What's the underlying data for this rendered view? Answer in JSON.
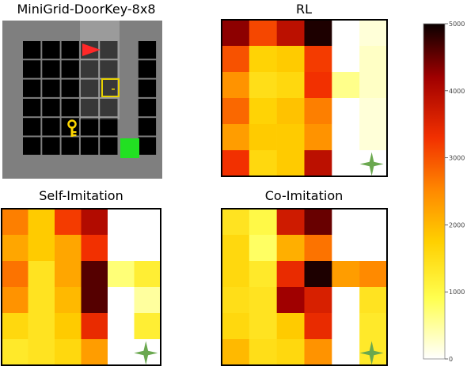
{
  "titles": {
    "env": "MiniGrid-DoorKey-8x8",
    "rl": "RL",
    "self": "Self-Imitation",
    "co": "Co-Imitation"
  },
  "colorbar": {
    "ticks": [
      "0",
      "1000",
      "2000",
      "3000",
      "4000",
      "5000"
    ],
    "min": 0,
    "max": 5000
  },
  "colors": {
    "agent": "#ff2828",
    "key": "#ffd700",
    "goal": "#22e022",
    "star": "#6aa84f",
    "wall": "#7f7f7f",
    "floor": "#000000"
  },
  "chart_data": [
    {
      "type": "heatmap",
      "title": "RL",
      "values": [
        [
          4300,
          3100,
          3900,
          4900,
          0,
          200
        ],
        [
          3000,
          1700,
          1800,
          3200,
          0,
          300
        ],
        [
          2400,
          1500,
          1600,
          3300,
          600,
          300
        ],
        [
          2800,
          1700,
          1900,
          2600,
          0,
          200
        ],
        [
          2300,
          1800,
          1800,
          2400,
          0,
          200
        ],
        [
          3300,
          1600,
          1800,
          3900,
          0,
          0
        ]
      ]
    },
    {
      "type": "heatmap",
      "title": "Self-Imitation",
      "values": [
        [
          2600,
          1800,
          3200,
          4000,
          0,
          0
        ],
        [
          2200,
          1800,
          2200,
          3300,
          0,
          0
        ],
        [
          2700,
          1400,
          2200,
          4600,
          700,
          1200
        ],
        [
          2400,
          1400,
          2000,
          4600,
          0,
          500
        ],
        [
          1600,
          1400,
          1800,
          3400,
          0,
          1200
        ],
        [
          1300,
          1400,
          1600,
          2300,
          0,
          0
        ]
      ]
    },
    {
      "type": "heatmap",
      "title": "Co-Imitation",
      "values": [
        [
          1400,
          1000,
          3700,
          4500,
          0,
          0
        ],
        [
          1600,
          800,
          2100,
          2700,
          0,
          0
        ],
        [
          1600,
          1300,
          3400,
          4900,
          2300,
          2500
        ],
        [
          1500,
          1400,
          4200,
          3600,
          0,
          1400
        ],
        [
          1600,
          1400,
          1800,
          3400,
          0,
          1300
        ],
        [
          2000,
          1500,
          1600,
          2400,
          0,
          1300
        ]
      ]
    }
  ]
}
